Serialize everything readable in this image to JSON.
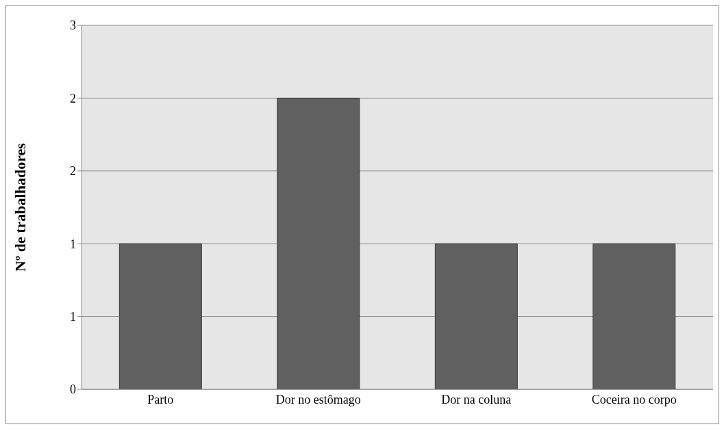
{
  "chart_data": {
    "type": "bar",
    "ylabel": "Nº de trabalhadores",
    "categories": [
      "Parto",
      "Dor no estômago",
      "Dor na coluna",
      "Coceira no corpo"
    ],
    "values": [
      1,
      2,
      1,
      1
    ],
    "color": "#606060",
    "ylim": [
      0,
      2.5
    ],
    "yticks": [
      0,
      {
        "value": 0.5,
        "label": "1"
      },
      1,
      {
        "value": 1.5,
        "label": "2"
      },
      2,
      {
        "value": 2.5,
        "label": "3"
      }
    ],
    "grid": "y",
    "legend": false
  }
}
